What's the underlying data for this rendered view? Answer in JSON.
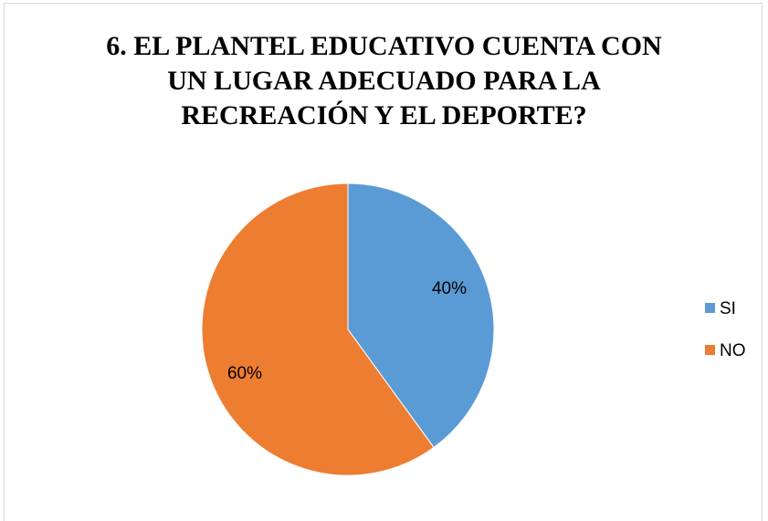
{
  "chart_data": {
    "type": "pie",
    "title": "6. EL PLANTEL EDUCATIVO CUENTA CON\nUN LUGAR ADECUADO PARA LA\nRECREACIÓN Y EL DEPORTE?",
    "categories": [
      "SI",
      "NO"
    ],
    "values": [
      40,
      60
    ],
    "data_labels": [
      "40%",
      "60%"
    ],
    "colors": [
      "#5B9BD5",
      "#ED7D31"
    ],
    "legend_position": "right"
  }
}
